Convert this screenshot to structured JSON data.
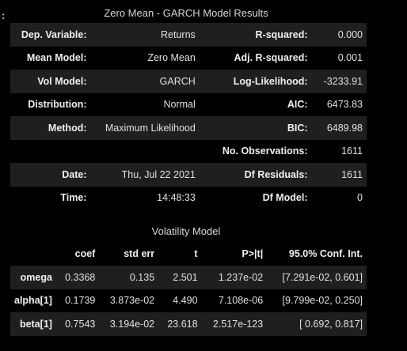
{
  "prompt": ":",
  "summary": {
    "caption": "Zero Mean - GARCH Model Results",
    "rows": [
      {
        "l1": "Dep. Variable:",
        "v1": "Returns",
        "l2": "R-squared:",
        "v2": "0.000"
      },
      {
        "l1": "Mean Model:",
        "v1": "Zero Mean",
        "l2": "Adj. R-squared:",
        "v2": "0.001"
      },
      {
        "l1": "Vol Model:",
        "v1": "GARCH",
        "l2": "Log-Likelihood:",
        "v2": "-3233.91"
      },
      {
        "l1": "Distribution:",
        "v1": "Normal",
        "l2": "AIC:",
        "v2": "6473.83"
      },
      {
        "l1": "Method:",
        "v1": "Maximum Likelihood",
        "l2": "BIC:",
        "v2": "6489.98"
      },
      {
        "l1": "",
        "v1": "",
        "l2": "No. Observations:",
        "v2": "1611"
      },
      {
        "l1": "Date:",
        "v1": "Thu, Jul 22 2021",
        "l2": "Df Residuals:",
        "v2": "1611"
      },
      {
        "l1": "Time:",
        "v1": "14:48:33",
        "l2": "Df Model:",
        "v2": "0"
      }
    ]
  },
  "volatility": {
    "caption": "Volatility Model",
    "headers": [
      "",
      "coef",
      "std err",
      "t",
      "P>|t|",
      "95.0% Conf. Int."
    ],
    "rows": [
      {
        "name": "omega",
        "cells": [
          "0.3368",
          "0.135",
          "2.501",
          "1.237e-02",
          "[7.291e-02, 0.601]"
        ]
      },
      {
        "name": "alpha[1]",
        "cells": [
          "0.1739",
          "3.873e-02",
          "4.490",
          "7.108e-06",
          "[9.799e-02, 0.250]"
        ]
      },
      {
        "name": "beta[1]",
        "cells": [
          "0.7543",
          "3.194e-02",
          "23.618",
          "2.517e-123",
          "[ 0.692, 0.817]"
        ]
      }
    ]
  }
}
